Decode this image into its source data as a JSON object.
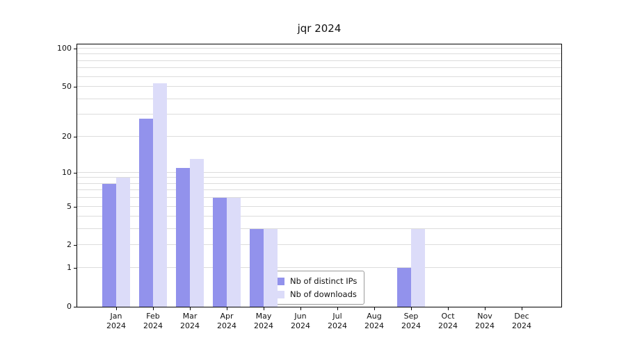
{
  "title": "jqr 2024",
  "colors": {
    "series": [
      "#9292ec",
      "#dcdcf9"
    ],
    "grid": "#dcdcdc",
    "axis": "#000000",
    "background": "#ffffff"
  },
  "legend": {
    "items": [
      {
        "label": "Nb of distinct IPs"
      },
      {
        "label": "Nb of downloads"
      }
    ],
    "position": "inside-bottom-center"
  },
  "chart_data": {
    "type": "bar",
    "title": "jqr 2024",
    "scale": "log1p",
    "grid": "horizontal",
    "ylim": [
      0,
      100
    ],
    "yticks": [
      0,
      1,
      2,
      5,
      10,
      20,
      50,
      100
    ],
    "gridlines": [
      1,
      2,
      3,
      4,
      5,
      6,
      7,
      8,
      9,
      10,
      20,
      30,
      40,
      50,
      60,
      70,
      80,
      90,
      100
    ],
    "categories": [
      "Jan",
      "Feb",
      "Mar",
      "Apr",
      "May",
      "Jun",
      "Jul",
      "Aug",
      "Sep",
      "Oct",
      "Nov",
      "Dec"
    ],
    "year": "2024",
    "series": [
      {
        "name": "Nb of distinct IPs",
        "color": "#9292ec",
        "values": [
          8,
          28,
          11,
          6,
          3,
          0,
          0,
          0,
          1,
          0,
          0,
          0
        ]
      },
      {
        "name": "Nb of downloads",
        "color": "#dcdcf9",
        "values": [
          9,
          53,
          13,
          6,
          3,
          0,
          0,
          0,
          3,
          0,
          0,
          0
        ]
      }
    ]
  }
}
